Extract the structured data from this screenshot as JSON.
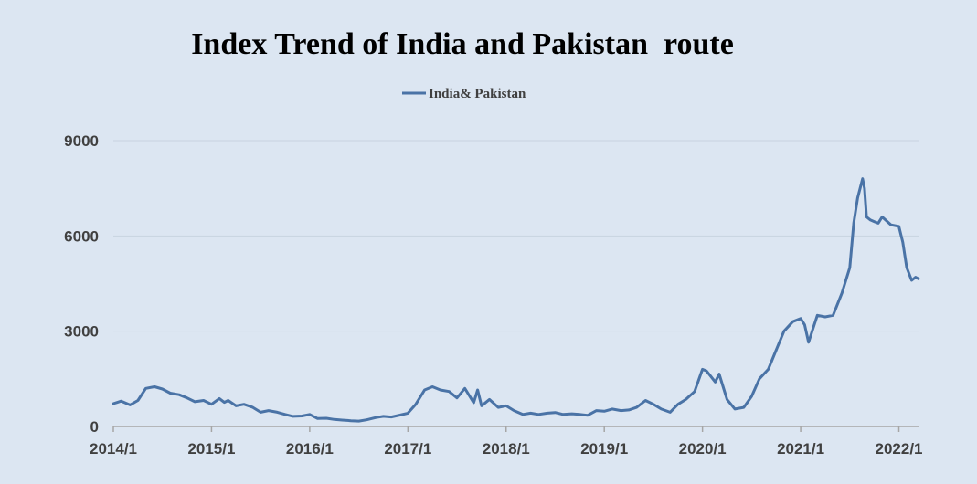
{
  "chart_data": {
    "type": "line",
    "title": "Index Trend of India and Pakistan  route",
    "xlabel": "",
    "ylabel": "",
    "ylim": [
      0,
      9000
    ],
    "y_ticks": [
      "0",
      "3000",
      "6000",
      "9000"
    ],
    "x_ticks": [
      "2014/1",
      "2015/1",
      "2016/1",
      "2017/1",
      "2018/1",
      "2019/1",
      "2020/1",
      "2021/1",
      "2022/1"
    ],
    "grid": true,
    "legend_position": "top-center",
    "series_color": "#4a73a6",
    "series": [
      {
        "name": "India& Pakistan",
        "x": [
          2014.0,
          2014.08,
          2014.17,
          2014.25,
          2014.33,
          2014.42,
          2014.5,
          2014.58,
          2014.67,
          2014.75,
          2014.83,
          2014.92,
          2015.0,
          2015.08,
          2015.13,
          2015.17,
          2015.25,
          2015.33,
          2015.42,
          2015.5,
          2015.58,
          2015.67,
          2015.75,
          2015.83,
          2015.92,
          2016.0,
          2016.08,
          2016.17,
          2016.25,
          2016.33,
          2016.42,
          2016.5,
          2016.58,
          2016.67,
          2016.75,
          2016.83,
          2016.92,
          2017.0,
          2017.08,
          2017.17,
          2017.25,
          2017.33,
          2017.42,
          2017.5,
          2017.58,
          2017.67,
          2017.71,
          2017.75,
          2017.83,
          2017.92,
          2018.0,
          2018.08,
          2018.17,
          2018.25,
          2018.33,
          2018.42,
          2018.5,
          2018.58,
          2018.67,
          2018.75,
          2018.83,
          2018.92,
          2019.0,
          2019.08,
          2019.17,
          2019.25,
          2019.33,
          2019.42,
          2019.5,
          2019.58,
          2019.67,
          2019.75,
          2019.83,
          2019.92,
          2020.0,
          2020.04,
          2020.08,
          2020.13,
          2020.17,
          2020.21,
          2020.25,
          2020.33,
          2020.42,
          2020.5,
          2020.58,
          2020.67,
          2020.75,
          2020.83,
          2020.92,
          2021.0,
          2021.04,
          2021.08,
          2021.17,
          2021.25,
          2021.33,
          2021.42,
          2021.5,
          2021.54,
          2021.58,
          2021.63,
          2021.65,
          2021.67,
          2021.71,
          2021.75,
          2021.79,
          2021.83,
          2021.92,
          2022.0,
          2022.04,
          2022.08,
          2022.13,
          2022.17,
          2022.2
        ],
        "values": [
          720,
          800,
          680,
          820,
          1200,
          1250,
          1180,
          1050,
          1000,
          900,
          780,
          820,
          700,
          880,
          760,
          820,
          650,
          700,
          600,
          450,
          500,
          450,
          380,
          320,
          330,
          380,
          250,
          260,
          220,
          200,
          180,
          170,
          210,
          280,
          320,
          300,
          360,
          420,
          700,
          1150,
          1250,
          1150,
          1100,
          900,
          1200,
          750,
          1150,
          650,
          850,
          600,
          650,
          500,
          380,
          420,
          380,
          420,
          440,
          380,
          400,
          380,
          350,
          500,
          480,
          550,
          500,
          520,
          600,
          820,
          700,
          550,
          450,
          700,
          850,
          1100,
          1800,
          1750,
          1600,
          1400,
          1650,
          1250,
          850,
          550,
          600,
          950,
          1500,
          1800,
          2400,
          3000,
          3300,
          3400,
          3200,
          2650,
          3500,
          3450,
          3500,
          4200,
          5000,
          6400,
          7200,
          7800,
          7500,
          6600,
          6500,
          6450,
          6400,
          6600,
          6350,
          6300,
          5800,
          5000,
          4600,
          4700,
          4650
        ]
      }
    ]
  }
}
